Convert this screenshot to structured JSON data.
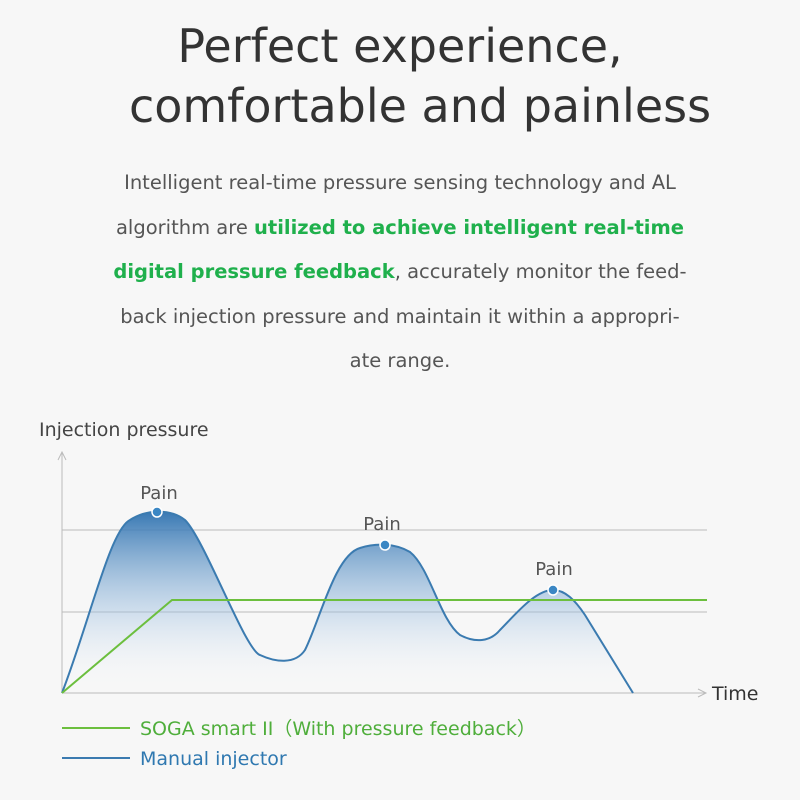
{
  "header": {
    "title": [
      "Perfect experience,",
      "comfortable and painless"
    ]
  },
  "body": {
    "lines": [
      [
        {
          "text": "Intelligent real-time pressure sensing technology and AL",
          "emphasis": false
        }
      ],
      [
        {
          "text": "algorithm are ",
          "emphasis": false
        },
        {
          "text": "utilized to achieve intelligent real-time",
          "emphasis": true
        }
      ],
      [
        {
          "text": "digital pressure feedback",
          "emphasis": true
        },
        {
          "text": ", accurately monitor the feed-",
          "emphasis": false
        }
      ],
      [
        {
          "text": "back injection pressure and maintain it within a appropri-",
          "emphasis": false
        }
      ],
      [
        {
          "text": "ate range.",
          "emphasis": false
        }
      ]
    ]
  },
  "diagram": {
    "y_label": "Injection pressure",
    "x_label": "Time",
    "markers": [
      "Pain",
      "Pain",
      "Pain"
    ],
    "legend": [
      "SOGA smart II（With pressure feedback）",
      "Manual injector"
    ]
  }
}
